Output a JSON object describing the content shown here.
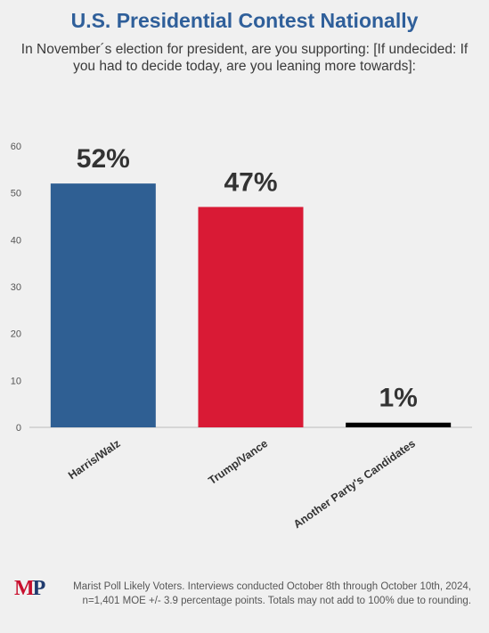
{
  "title": "U.S. Presidential Contest Nationally",
  "subtitle": "In November´s election for president, are you supporting: [If undecided: If you had to decide today, are you leaning more towards]:",
  "logo_text": {
    "m": "M",
    "p": "P"
  },
  "footnote": "Marist Poll Likely Voters. Interviews conducted October 8th through October 10th, 2024, n=1,401 MOE +/- 3.9 percentage points. Totals may not add to 100% due to rounding.",
  "chart_data": {
    "type": "bar",
    "categories": [
      "Harris/Walz",
      "Trump/Vance",
      "Another Party's Candidates"
    ],
    "values": [
      52,
      47,
      1
    ],
    "data_labels": [
      "52%",
      "47%",
      "1%"
    ],
    "colors": [
      "#2f5f93",
      "#d91a35",
      "#000000"
    ],
    "ylim": [
      0,
      60
    ],
    "yticks": [
      0,
      10,
      20,
      30,
      40,
      50,
      60
    ],
    "grid": false,
    "legend": "none"
  }
}
